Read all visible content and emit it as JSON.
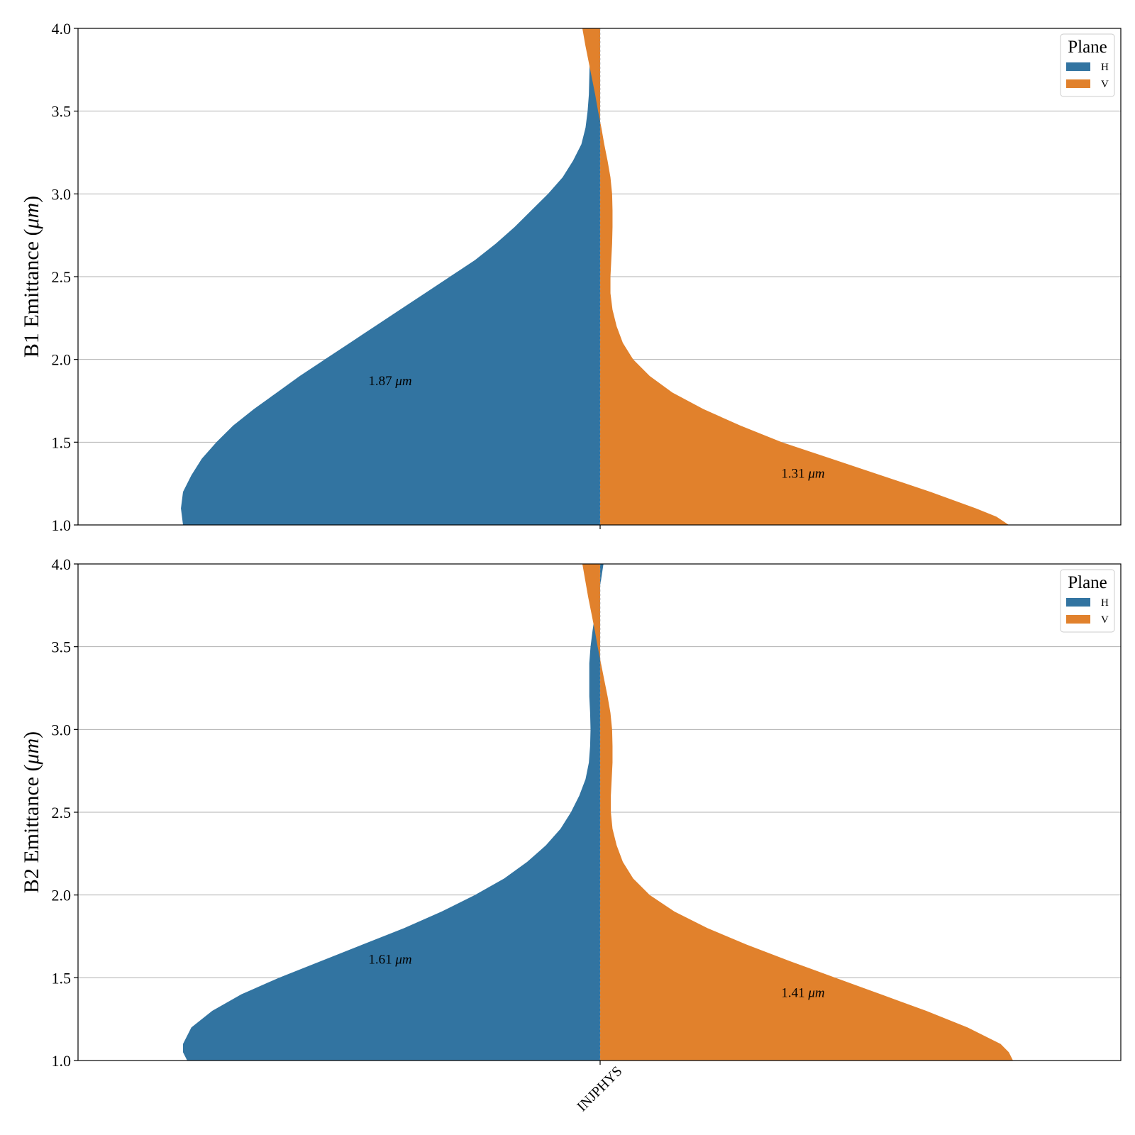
{
  "chart_data": [
    {
      "type": "violin",
      "ylabel_prefix": "B1 Emittance (",
      "ylabel_unit": "μm",
      "ylabel_suffix": ")",
      "ylim": [
        1.0,
        4.0
      ],
      "yticks": [
        "1.0",
        "1.5",
        "2.0",
        "2.5",
        "3.0",
        "3.5",
        "4.0"
      ],
      "grid": true,
      "categories": [
        "INJPHYS"
      ],
      "legend": {
        "title": "Plane",
        "placement": "top-right",
        "items": [
          "H",
          "V"
        ]
      },
      "series": [
        {
          "name": "H",
          "color": "#3274a1",
          "annotation_value": "1.87",
          "annotation_unit": "μm",
          "annotation_y": 1.87,
          "profile": [
            [
              1.0,
              1.0
            ],
            [
              1.1,
              1.005
            ],
            [
              1.2,
              1.0
            ],
            [
              1.3,
              0.98
            ],
            [
              1.4,
              0.955
            ],
            [
              1.5,
              0.92
            ],
            [
              1.6,
              0.88
            ],
            [
              1.7,
              0.83
            ],
            [
              1.8,
              0.775
            ],
            [
              1.9,
              0.72
            ],
            [
              2.0,
              0.66
            ],
            [
              2.1,
              0.6
            ],
            [
              2.2,
              0.54
            ],
            [
              2.3,
              0.48
            ],
            [
              2.4,
              0.42
            ],
            [
              2.5,
              0.36
            ],
            [
              2.6,
              0.3
            ],
            [
              2.7,
              0.25
            ],
            [
              2.8,
              0.205
            ],
            [
              2.9,
              0.165
            ],
            [
              3.0,
              0.125
            ],
            [
              3.1,
              0.09
            ],
            [
              3.2,
              0.065
            ],
            [
              3.3,
              0.045
            ],
            [
              3.4,
              0.035
            ],
            [
              3.5,
              0.03
            ],
            [
              3.6,
              0.027
            ],
            [
              3.7,
              0.026
            ],
            [
              3.8,
              0.025
            ],
            [
              3.9,
              0.025
            ],
            [
              4.0,
              0.025
            ]
          ]
        },
        {
          "name": "V",
          "color": "#e1812c",
          "annotation_value": "1.31",
          "annotation_unit": "μm",
          "annotation_y": 1.31,
          "profile": [
            [
              1.0,
              0.99
            ],
            [
              1.05,
              0.96
            ],
            [
              1.1,
              0.91
            ],
            [
              1.2,
              0.8
            ],
            [
              1.3,
              0.68
            ],
            [
              1.4,
              0.56
            ],
            [
              1.5,
              0.44
            ],
            [
              1.6,
              0.34
            ],
            [
              1.7,
              0.25
            ],
            [
              1.8,
              0.175
            ],
            [
              1.9,
              0.12
            ],
            [
              2.0,
              0.08
            ],
            [
              2.1,
              0.055
            ],
            [
              2.2,
              0.04
            ],
            [
              2.3,
              0.03
            ],
            [
              2.4,
              0.025
            ],
            [
              2.5,
              0.025
            ],
            [
              2.6,
              0.027
            ],
            [
              2.7,
              0.029
            ],
            [
              2.8,
              0.03
            ],
            [
              2.9,
              0.03
            ],
            [
              3.0,
              0.029
            ],
            [
              3.1,
              0.025
            ],
            [
              3.2,
              0.018
            ],
            [
              3.3,
              0.01
            ],
            [
              3.4,
              0.003
            ],
            [
              3.5,
              -0.005
            ],
            [
              3.6,
              -0.012
            ],
            [
              3.7,
              -0.02
            ],
            [
              3.8,
              -0.028
            ],
            [
              3.9,
              -0.036
            ],
            [
              4.0,
              -0.043
            ]
          ]
        }
      ]
    },
    {
      "type": "violin",
      "ylabel_prefix": "B2 Emittance (",
      "ylabel_unit": "μm",
      "ylabel_suffix": ")",
      "ylim": [
        1.0,
        4.0
      ],
      "yticks": [
        "1.0",
        "1.5",
        "2.0",
        "2.5",
        "3.0",
        "3.5",
        "4.0"
      ],
      "grid": true,
      "categories": [
        "INJPHYS"
      ],
      "legend": {
        "title": "Plane",
        "placement": "top-right",
        "items": [
          "H",
          "V"
        ]
      },
      "series": [
        {
          "name": "H",
          "color": "#3274a1",
          "annotation_value": "1.61",
          "annotation_unit": "μm",
          "annotation_y": 1.61,
          "profile": [
            [
              1.0,
              0.99
            ],
            [
              1.05,
              1.0
            ],
            [
              1.1,
              1.0
            ],
            [
              1.2,
              0.98
            ],
            [
              1.3,
              0.93
            ],
            [
              1.4,
              0.86
            ],
            [
              1.5,
              0.77
            ],
            [
              1.6,
              0.67
            ],
            [
              1.7,
              0.57
            ],
            [
              1.8,
              0.47
            ],
            [
              1.9,
              0.38
            ],
            [
              2.0,
              0.3
            ],
            [
              2.1,
              0.23
            ],
            [
              2.2,
              0.175
            ],
            [
              2.3,
              0.13
            ],
            [
              2.4,
              0.095
            ],
            [
              2.5,
              0.07
            ],
            [
              2.6,
              0.05
            ],
            [
              2.7,
              0.035
            ],
            [
              2.8,
              0.027
            ],
            [
              2.9,
              0.024
            ],
            [
              3.0,
              0.023
            ],
            [
              3.1,
              0.024
            ],
            [
              3.2,
              0.026
            ],
            [
              3.3,
              0.026
            ],
            [
              3.4,
              0.026
            ],
            [
              3.5,
              0.023
            ],
            [
              3.6,
              0.018
            ],
            [
              3.7,
              0.012
            ],
            [
              3.8,
              0.005
            ],
            [
              3.9,
              -0.002
            ],
            [
              4.0,
              -0.008
            ]
          ]
        },
        {
          "name": "V",
          "color": "#e1812c",
          "annotation_value": "1.41",
          "annotation_unit": "μm",
          "annotation_y": 1.41,
          "profile": [
            [
              1.0,
              1.0
            ],
            [
              1.05,
              0.99
            ],
            [
              1.1,
              0.97
            ],
            [
              1.2,
              0.89
            ],
            [
              1.3,
              0.79
            ],
            [
              1.4,
              0.68
            ],
            [
              1.5,
              0.57
            ],
            [
              1.6,
              0.46
            ],
            [
              1.7,
              0.355
            ],
            [
              1.8,
              0.26
            ],
            [
              1.9,
              0.18
            ],
            [
              2.0,
              0.12
            ],
            [
              2.1,
              0.08
            ],
            [
              2.2,
              0.055
            ],
            [
              2.3,
              0.04
            ],
            [
              2.4,
              0.03
            ],
            [
              2.5,
              0.026
            ],
            [
              2.6,
              0.026
            ],
            [
              2.7,
              0.028
            ],
            [
              2.8,
              0.03
            ],
            [
              2.9,
              0.03
            ],
            [
              3.0,
              0.029
            ],
            [
              3.1,
              0.025
            ],
            [
              3.2,
              0.018
            ],
            [
              3.3,
              0.01
            ],
            [
              3.4,
              0.002
            ],
            [
              3.5,
              -0.006
            ],
            [
              3.6,
              -0.013
            ],
            [
              3.7,
              -0.021
            ],
            [
              3.8,
              -0.029
            ],
            [
              3.9,
              -0.036
            ],
            [
              4.0,
              -0.043
            ]
          ]
        }
      ]
    }
  ]
}
